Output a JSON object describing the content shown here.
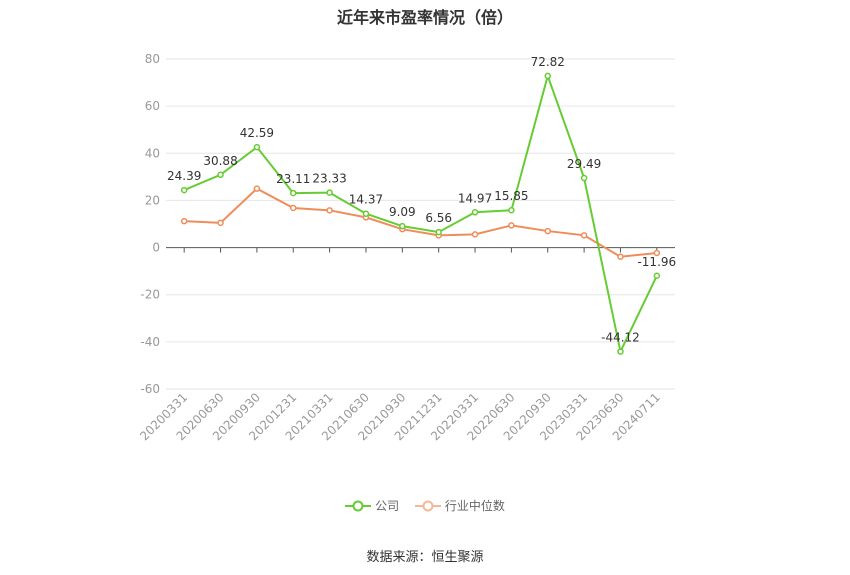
{
  "title": "近年来市盈率情况（倍）",
  "source_text": "数据来源：恒生聚源",
  "chart_data": {
    "type": "line",
    "title": "近年来市盈率情况（倍）",
    "categories": [
      "20200331",
      "20200630",
      "20200930",
      "20201231",
      "20210331",
      "20210630",
      "20210930",
      "20211231",
      "20220331",
      "20220630",
      "20220930",
      "20230331",
      "20230630",
      "20240711"
    ],
    "ylim": [
      -60,
      80
    ],
    "yticks": [
      80,
      60,
      40,
      20,
      0,
      -20,
      -40,
      -60
    ],
    "grid": true,
    "legend_position": "bottom",
    "series": [
      {
        "name": "公司",
        "color": "#66cc33",
        "values": [
          24.39,
          30.88,
          42.59,
          23.11,
          23.33,
          14.37,
          9.09,
          6.56,
          14.97,
          15.85,
          72.82,
          29.49,
          -44.12,
          -11.96
        ],
        "labels": [
          "24.39",
          "30.88",
          "42.59",
          "23.11",
          "23.33",
          "14.37",
          "9.09",
          "6.56",
          "14.97",
          "15.85",
          "72.82",
          "29.49",
          "-44.12",
          "-11.96"
        ]
      },
      {
        "name": "行业中位数",
        "color": "#f08c5a",
        "values": [
          11.2,
          10.5,
          25.0,
          16.8,
          15.8,
          12.8,
          7.8,
          5.2,
          5.6,
          9.4,
          7.0,
          5.2,
          -3.9,
          -2.3
        ]
      }
    ]
  }
}
